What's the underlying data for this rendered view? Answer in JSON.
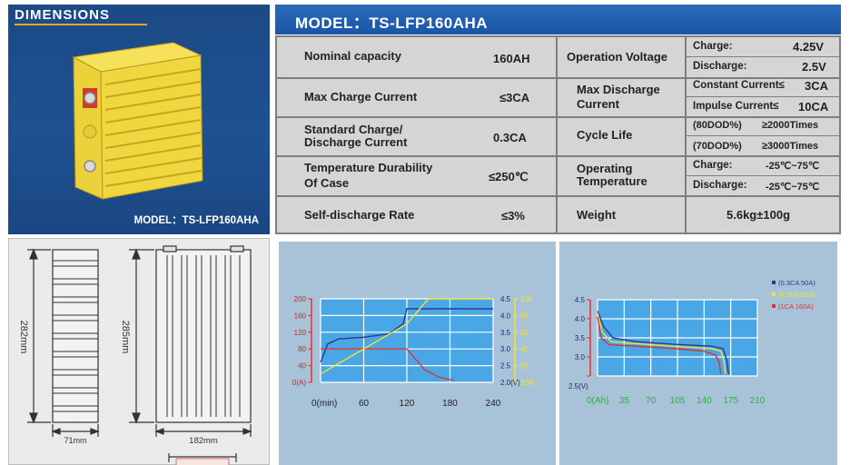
{
  "photo_panel": {
    "title": "DIMENSIONS",
    "model_caption": "MODEL：TS-LFP160AHA"
  },
  "spec_header": {
    "title": "MODEL：TS-LFP160AHA"
  },
  "specs": {
    "nominal_capacity": {
      "label": "Nominal capacity",
      "value": "160AH"
    },
    "max_charge_current": {
      "label": "Max Charge Current",
      "value": "≤3CA"
    },
    "standard_charge": {
      "label_line1": "Standard Charge/",
      "label_line2": "Discharge Current",
      "value": "0.3CA"
    },
    "temperature_durability": {
      "label_line1": "Temperature Durability",
      "label_line2": "Of Case",
      "value": "≤250℃"
    },
    "self_discharge": {
      "label": "Self-discharge Rate",
      "value": "≤3%"
    },
    "operation_voltage": {
      "label": "Operation Voltage",
      "charge_label": "Charge:",
      "charge_value": "4.25V",
      "discharge_label": "Discharge:",
      "discharge_value": "2.5V"
    },
    "max_discharge_current": {
      "label_line1": "Max Discharge",
      "label_line2": "Current",
      "constant_label": "Constant Current≤",
      "constant_value": "3CA",
      "impulse_label": "Impulse Current≤",
      "impulse_value": "10CA"
    },
    "cycle_life": {
      "label": "Cycle Life",
      "row1_dod": "(80DOD%)",
      "row1_value": "≥2000Times",
      "row2_dod": "(70DOD%)",
      "row2_value": "≥3000Times"
    },
    "operating_temperature": {
      "label_line1": "Operating",
      "label_line2": "Temperature",
      "charge_label": "Charge:",
      "charge_value": "-25℃~75℃",
      "discharge_label": "Discharge:",
      "discharge_value": "-25℃~75℃"
    },
    "weight": {
      "label": "Weight",
      "value": "5.6kg±100g"
    }
  },
  "drawings": {
    "side_height": "282mm",
    "front_height": "285mm",
    "side_width": "71mm",
    "front_width": "182mm"
  },
  "chart_data": [
    {
      "type": "line",
      "title": "",
      "x_ticks": [
        "0(min)",
        "60",
        "120",
        "180",
        "240"
      ],
      "xlim": [
        0,
        240
      ],
      "left_axis_ticks": [
        "200",
        "160",
        "120",
        "80",
        "40",
        "0(A)"
      ],
      "left_ylim": [
        0,
        200
      ],
      "right_axis_voltage_ticks": [
        "4.5",
        "4.0",
        "3.5",
        "3.0",
        "2.5",
        "2.0(V)"
      ],
      "right_voltage_ylim": [
        2.0,
        4.5
      ],
      "right_axis_percent_ticks": [
        "100",
        "80",
        "60",
        "40",
        "20",
        "10%"
      ],
      "series": [
        {
          "color": "#2b3a8f",
          "axis": "voltage",
          "points": [
            [
              0,
              2.6
            ],
            [
              10,
              3.15
            ],
            [
              25,
              3.3
            ],
            [
              60,
              3.35
            ],
            [
              95,
              3.45
            ],
            [
              115,
              3.75
            ],
            [
              120,
              4.2
            ],
            [
              240,
              4.2
            ]
          ]
        },
        {
          "color": "#e03131",
          "axis": "current",
          "points": [
            [
              0,
              80
            ],
            [
              120,
              80
            ],
            [
              130,
              60
            ],
            [
              145,
              30
            ],
            [
              165,
              12
            ],
            [
              185,
              5
            ]
          ]
        },
        {
          "color": "#f1e338",
          "axis": "percent",
          "points": [
            [
              0,
              10
            ],
            [
              120,
              70
            ],
            [
              150,
              100
            ],
            [
              240,
              100
            ]
          ]
        }
      ],
      "grid": true
    },
    {
      "type": "line",
      "title": "",
      "xlabel": "",
      "x_ticks": [
        "0(Ah)",
        "35",
        "70",
        "105",
        "140",
        "175",
        "210"
      ],
      "xlim": [
        0,
        210
      ],
      "y_ticks": [
        "4.5",
        "4.0",
        "3.5",
        "3.0",
        "2.5(V)"
      ],
      "ylim": [
        2.5,
        4.5
      ],
      "series": [
        {
          "name": "(0.3CA 50A)",
          "color": "#2b3a8f",
          "points": [
            [
              0,
              4.2
            ],
            [
              8,
              3.8
            ],
            [
              20,
              3.5
            ],
            [
              50,
              3.4
            ],
            [
              100,
              3.33
            ],
            [
              150,
              3.28
            ],
            [
              165,
              3.22
            ],
            [
              170,
              2.9
            ],
            [
              172,
              2.55
            ]
          ]
        },
        {
          "name": "(0.5CA 80A)",
          "color": "#f1e338",
          "points": [
            [
              0,
              4.15
            ],
            [
              6,
              3.65
            ],
            [
              18,
              3.4
            ],
            [
              50,
              3.35
            ],
            [
              100,
              3.28
            ],
            [
              150,
              3.22
            ],
            [
              162,
              3.15
            ],
            [
              166,
              2.9
            ],
            [
              168,
              2.55
            ]
          ]
        },
        {
          "name": "(1CA  160A)",
          "color": "#e03131",
          "points": [
            [
              0,
              4.05
            ],
            [
              5,
              3.5
            ],
            [
              15,
              3.32
            ],
            [
              50,
              3.28
            ],
            [
              100,
              3.22
            ],
            [
              140,
              3.15
            ],
            [
              155,
              3.05
            ],
            [
              160,
              2.85
            ],
            [
              162,
              2.55
            ]
          ]
        }
      ],
      "legend": "top-right",
      "grid": true
    }
  ]
}
